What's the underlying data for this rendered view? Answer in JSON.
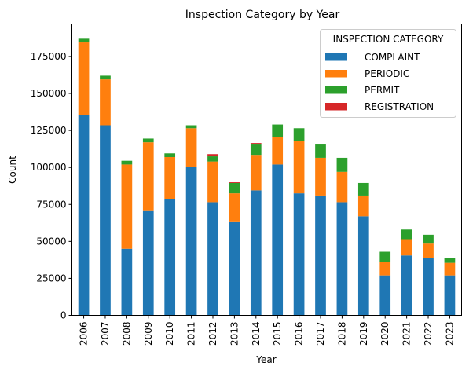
{
  "chart_data": {
    "type": "bar",
    "stacked": true,
    "title": "Inspection Category by Year",
    "xlabel": "Year",
    "ylabel": "Count",
    "ylim": [
      0,
      197000
    ],
    "yticks": [
      0,
      25000,
      50000,
      75000,
      100000,
      125000,
      150000,
      175000
    ],
    "grid": false,
    "legend": {
      "title": "INSPECTION CATEGORY",
      "position": "top-right"
    },
    "categories": [
      "2006",
      "2007",
      "2008",
      "2009",
      "2010",
      "2011",
      "2012",
      "2013",
      "2014",
      "2015",
      "2016",
      "2017",
      "2018",
      "2019",
      "2020",
      "2021",
      "2022",
      "2023"
    ],
    "series": [
      {
        "name": "COMPLAINT",
        "color": "#1f77b4",
        "values": [
          135500,
          128500,
          45000,
          70500,
          78500,
          100500,
          76500,
          63000,
          84500,
          102000,
          82500,
          81000,
          76500,
          67000,
          27000,
          40500,
          39000,
          27000
        ]
      },
      {
        "name": "PERIODIC",
        "color": "#ff7f0e",
        "values": [
          49000,
          31000,
          57000,
          46500,
          28500,
          26000,
          27500,
          19500,
          24000,
          18500,
          35500,
          25500,
          20500,
          14000,
          9000,
          11000,
          9500,
          8500
        ]
      },
      {
        "name": "PERMIT",
        "color": "#2ca02c",
        "values": [
          2500,
          2500,
          2500,
          2500,
          2500,
          2000,
          3500,
          7000,
          7500,
          8500,
          8500,
          9500,
          9500,
          8500,
          7000,
          6500,
          6000,
          3500
        ]
      },
      {
        "name": "REGISTRATION",
        "color": "#d62728",
        "values": [
          0,
          0,
          0,
          0,
          0,
          0,
          1500,
          500,
          500,
          0,
          0,
          0,
          0,
          0,
          0,
          0,
          0,
          0
        ]
      }
    ]
  }
}
